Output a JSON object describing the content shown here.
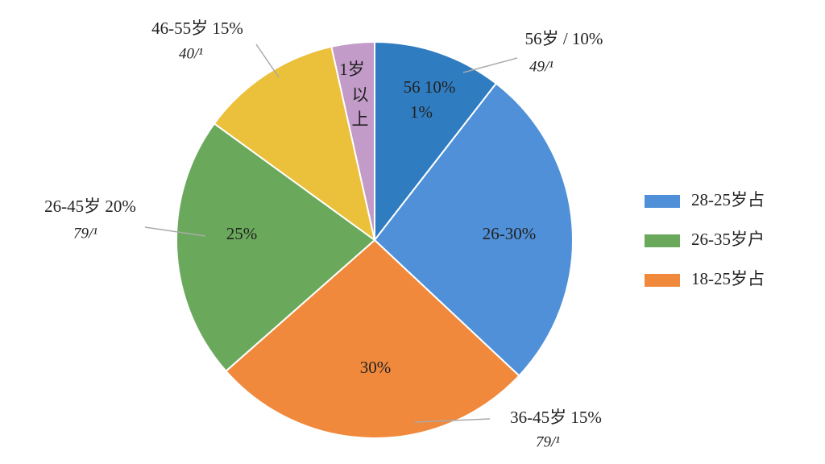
{
  "chart_data": {
    "type": "pie",
    "categories": [
      null,
      null,
      null,
      null,
      null,
      null
    ],
    "values": [
      10.5,
      26.5,
      26.5,
      21.5,
      11.5,
      3.5
    ],
    "colors": [
      "#2f7cc0",
      "#4f90d8",
      "#f0893c",
      "#6aa95c",
      "#ebc03b",
      "#c29bc8"
    ],
    "inner_labels": [
      [
        "56 10%",
        "1%"
      ],
      [
        "26-30%"
      ],
      [
        "30%"
      ],
      [
        "25%"
      ],
      null,
      [
        "1岁",
        "以",
        "上"
      ]
    ],
    "callouts": [
      {
        "text": "56岁 / 10%",
        "subtext": "49/¹"
      },
      null,
      {
        "text": "36-45岁 15%",
        "subtext": "79/¹"
      },
      {
        "text": "26-45岁 20%",
        "subtext": "79/¹"
      },
      {
        "text": "46-55岁 15%",
        "subtext": "40/¹"
      },
      null
    ],
    "legend": [
      {
        "name": "28-25岁占",
        "color": "#4f90d8"
      },
      {
        "name": "26-35岁户",
        "color": "#6aa95c"
      },
      {
        "name": "18-25岁占",
        "color": "#f0893c"
      }
    ]
  }
}
